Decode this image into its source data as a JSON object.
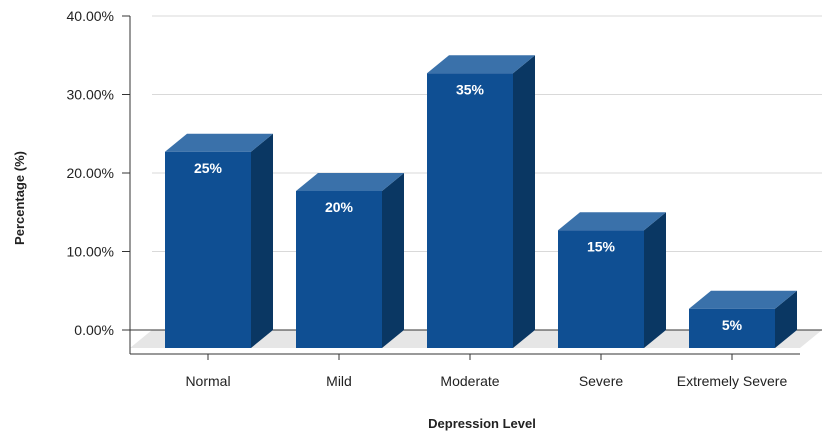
{
  "chart_data": {
    "type": "bar",
    "style": "3d",
    "categories": [
      "Normal",
      "Mild",
      "Moderate",
      "Severe",
      "Extremely Severe"
    ],
    "values": [
      25,
      20,
      35,
      15,
      5
    ],
    "data_labels": [
      "25%",
      "20%",
      "35%",
      "15%",
      "5%"
    ],
    "xlabel": "Depression Level",
    "ylabel": "Percentage (%)",
    "ylim": [
      0,
      40
    ],
    "y_ticks": [
      0,
      10,
      20,
      30,
      40
    ],
    "y_tick_labels": [
      "0.00%",
      "10.00%",
      "20.00%",
      "30.00%",
      "40.00%"
    ],
    "grid": true,
    "legend": "none",
    "colors": {
      "bar_front": "#0f4f93",
      "bar_side": "#0a3763",
      "bar_top": "#3a71aa",
      "floor": "#e6e6e6",
      "grid": "#d9d9d9",
      "axis": "#333333"
    }
  }
}
